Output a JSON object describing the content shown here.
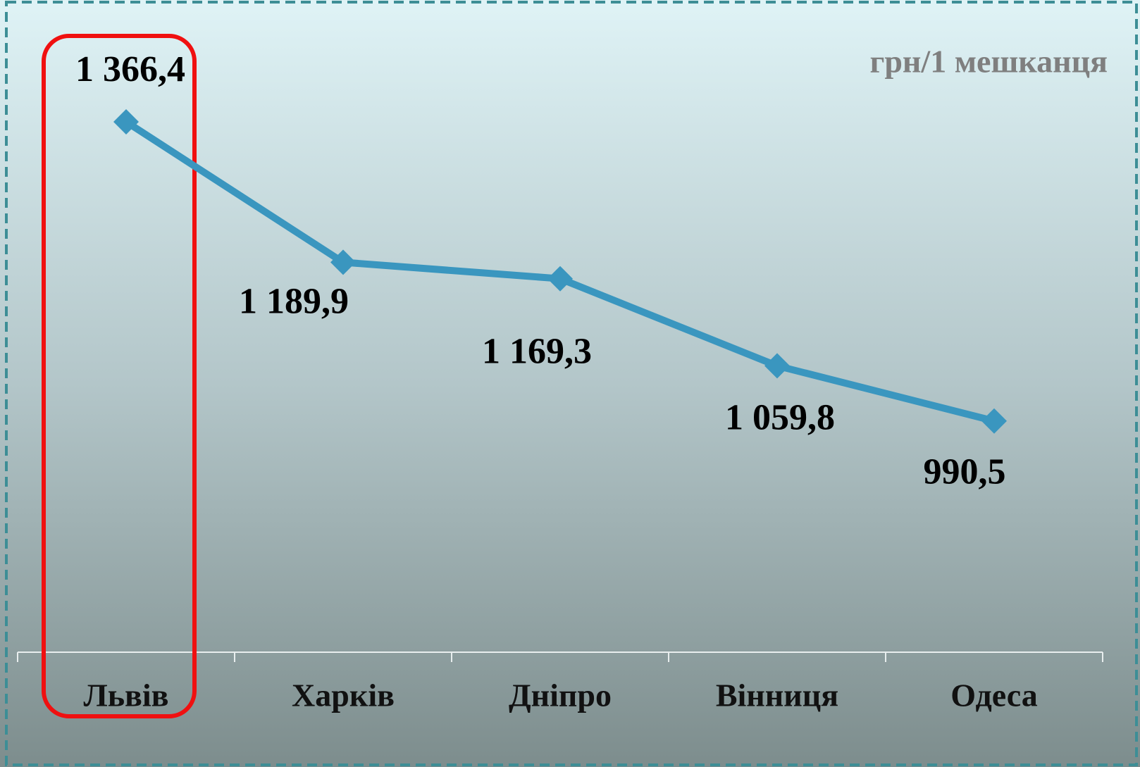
{
  "chart_data": {
    "type": "line",
    "subtitle": "грн/1 мешканця",
    "categories": [
      "Львів",
      "Харків",
      "Дніпро",
      "Вінниця",
      "Одеса"
    ],
    "series": [
      {
        "name": null,
        "color": "#3a96bf",
        "values": [
          1366.4,
          1189.9,
          1169.3,
          1059.8,
          990.5
        ],
        "value_labels": [
          "1 366,4",
          "1 189,9",
          "1 169,3",
          "1 059,8",
          "990,5"
        ]
      }
    ],
    "ylim": [
      700,
      1500
    ]
  }
}
